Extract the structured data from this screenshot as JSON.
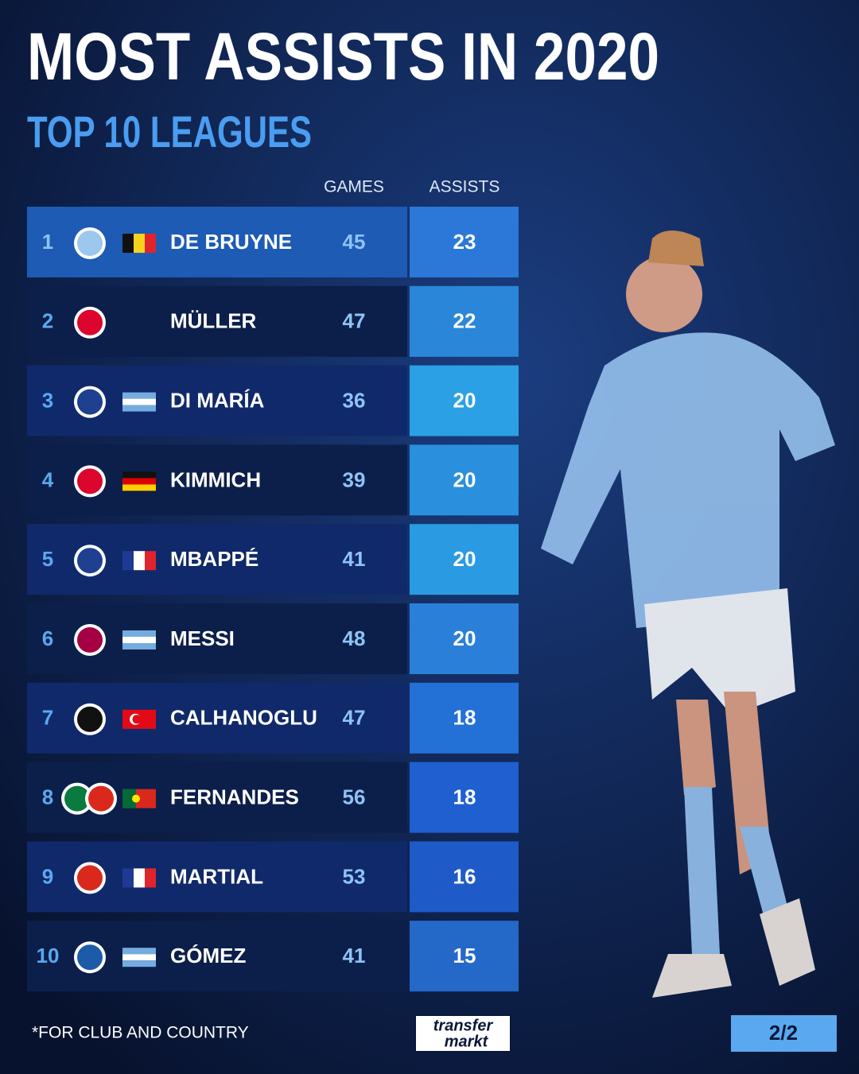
{
  "header": {
    "title": "MOST ASSISTS IN 2020",
    "subtitle": "TOP 10 LEAGUES"
  },
  "table": {
    "columns": [
      "GAMES",
      "ASSISTS"
    ],
    "rows": [
      {
        "rank": 1,
        "name": "DE BRUYNE",
        "games": 45,
        "assists": 23
      },
      {
        "rank": 2,
        "name": "MÜLLER",
        "games": 47,
        "assists": 22
      },
      {
        "rank": 3,
        "name": "DI MARÍA",
        "games": 36,
        "assists": 20
      },
      {
        "rank": 4,
        "name": "KIMMICH",
        "games": 39,
        "assists": 20
      },
      {
        "rank": 5,
        "name": "MBAPPÉ",
        "games": 41,
        "assists": 20
      },
      {
        "rank": 6,
        "name": "MESSI",
        "games": 48,
        "assists": 20
      },
      {
        "rank": 7,
        "name": "CALHANOGLU",
        "games": 47,
        "assists": 18
      },
      {
        "rank": 8,
        "name": "FERNANDES",
        "games": 56,
        "assists": 18
      },
      {
        "rank": 9,
        "name": "MARTIAL",
        "games": 53,
        "assists": 16
      },
      {
        "rank": 10,
        "name": "GÓMEZ",
        "games": 41,
        "assists": 15
      }
    ]
  },
  "footer": {
    "note": "*FOR CLUB AND COUNTRY",
    "brand": [
      "transfer",
      "markt"
    ],
    "page": "2/2"
  }
}
